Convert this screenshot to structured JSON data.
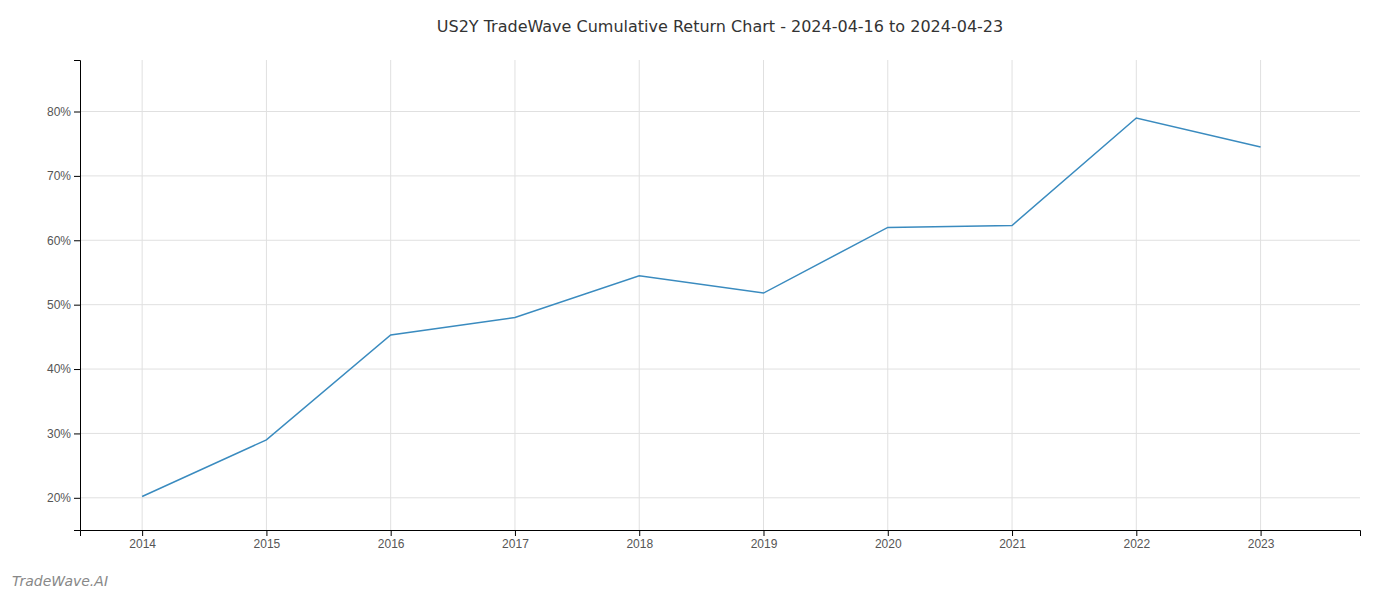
{
  "chart_data": {
    "type": "line",
    "title": "US2Y TradeWave Cumulative Return Chart - 2024-04-16 to 2024-04-23",
    "annotations": [
      "TradeWave.AI"
    ],
    "x": [
      2014,
      2015,
      2016,
      2017,
      2018,
      2019,
      2020,
      2021,
      2022,
      2023
    ],
    "values": [
      20.2,
      29.0,
      45.3,
      48.0,
      54.5,
      51.8,
      62.0,
      62.3,
      79.0,
      74.5
    ],
    "color": "#3a8bbf",
    "xlim": [
      2013.5,
      2023.8
    ],
    "ylim": [
      15,
      88
    ],
    "xticks": [
      2014,
      2015,
      2016,
      2017,
      2018,
      2019,
      2020,
      2021,
      2022,
      2023
    ],
    "yticks": [
      {
        "value": 20,
        "label": "20%"
      },
      {
        "value": 30,
        "label": "30%"
      },
      {
        "value": 40,
        "label": "40%"
      },
      {
        "value": 50,
        "label": "50%"
      },
      {
        "value": 60,
        "label": "60%"
      },
      {
        "value": 70,
        "label": "70%"
      },
      {
        "value": 80,
        "label": "80%"
      }
    ],
    "grid": true
  }
}
